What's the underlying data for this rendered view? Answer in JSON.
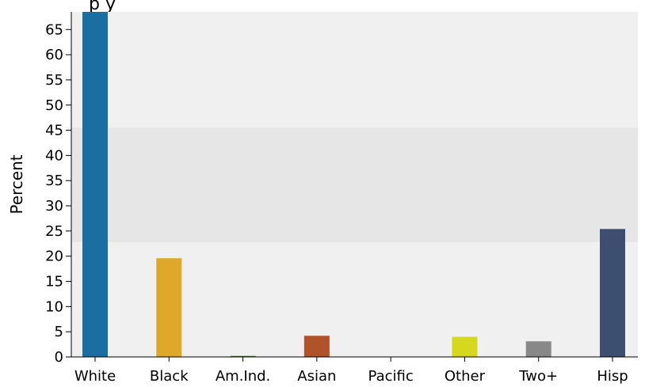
{
  "chart_data": {
    "type": "bar",
    "title": "",
    "title_visible_fragment": "p      y",
    "xlabel": "",
    "ylabel": "Percent",
    "categories": [
      "White",
      "Black",
      "Am.Ind.",
      "Asian",
      "Pacific",
      "Other",
      "Two+",
      "Hisp"
    ],
    "values": [
      69.0,
      19.6,
      0.2,
      4.2,
      0.0,
      4.0,
      3.1,
      25.4
    ],
    "colors": [
      "#1a6fa0",
      "#e0a82a",
      "#4a7a2a",
      "#b0532a",
      "#6a9ac8",
      "#d6d820",
      "#888888",
      "#3d4f70"
    ],
    "ylim": [
      0,
      68.5
    ],
    "yticks": [
      0,
      5,
      10,
      15,
      20,
      25,
      30,
      35,
      40,
      45,
      50,
      55,
      60,
      65
    ],
    "band": {
      "from": 22.8,
      "to": 45.5,
      "color": "#e6e6e6"
    },
    "background": "#f0f0f0",
    "grid": false,
    "legend": "none"
  }
}
